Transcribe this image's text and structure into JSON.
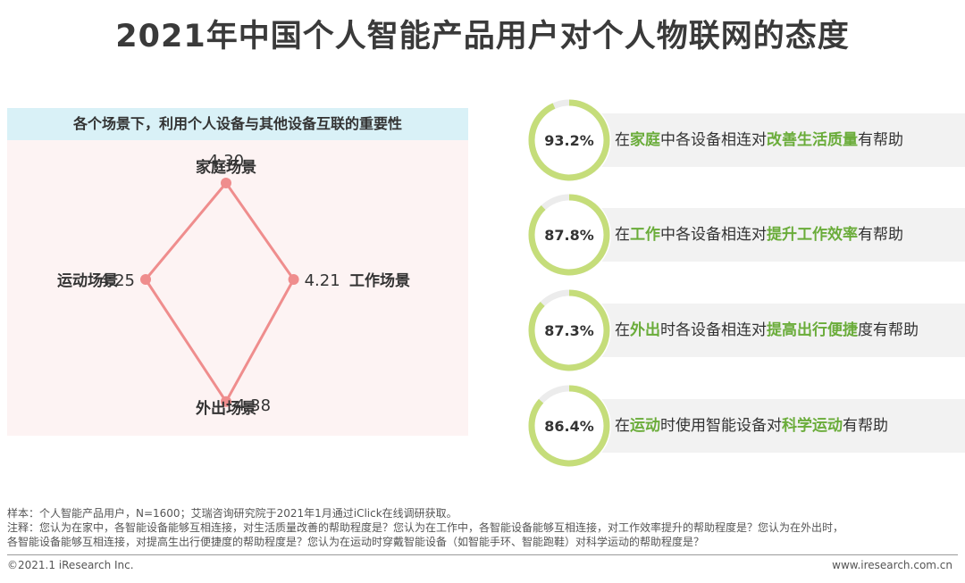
{
  "title": "2021年中国个人智能产品用户对个人物联网的态度",
  "left_panel": {
    "header": "各个场景下，利用个人设备与其他设备互联的重要性"
  },
  "chart_data": {
    "type": "radar",
    "title": "各个场景下，利用个人设备与其他设备互联的重要性",
    "axes": [
      "家庭场景",
      "工作场景",
      "外出场景",
      "运动场景"
    ],
    "values": [
      4.3,
      4.21,
      4.38,
      4.25
    ],
    "value_labels": [
      "4.30",
      "4.21",
      "4.38",
      "4.25"
    ],
    "color": "#ef8d8d"
  },
  "stats": [
    {
      "percent_label": "93.2%",
      "fraction": 0.932,
      "pre": "在",
      "hl1": "家庭",
      "mid": "中各设备相连对",
      "hl2": "改善生活质量",
      "post": "有帮助"
    },
    {
      "percent_label": "87.8%",
      "fraction": 0.878,
      "pre": "在",
      "hl1": "工作",
      "mid": "中各设备相连对",
      "hl2": "提升工作效率",
      "post": "有帮助"
    },
    {
      "percent_label": "87.3%",
      "fraction": 0.873,
      "pre": "在",
      "hl1": "外出",
      "mid": "时各设备相连对",
      "hl2": "提高出行便捷",
      "post": "度有帮助"
    },
    {
      "percent_label": "86.4%",
      "fraction": 0.864,
      "pre": "在",
      "hl1": "运动",
      "mid": "时使用智能设备对",
      "hl2": "科学运动",
      "post": "有帮助"
    }
  ],
  "colors": {
    "ring_fill": "#c5dd7a",
    "ring_track": "#ececec",
    "highlight": "#6aac3a",
    "radar_line": "#ef8d8d"
  },
  "footnotes": {
    "sample": "样本：个人智能产品用户，N=1600；艾瑞咨询研究院于2021年1月通过iClick在线调研获取。",
    "note1": "注释：您认为在家中，各智能设备能够互相连接，对生活质量改善的帮助程度是？您认为在工作中，各智能设备能够互相连接，对工作效率提升的帮助程度是？您认为在外出时，",
    "note2": "各智能设备能够互相连接，对提高生出行便捷度的帮助程度是？您认为在运动时穿戴智能设备（如智能手环、智能跑鞋）对科学运动的帮助程度是？"
  },
  "footer": {
    "copyright": "©2021.1 iResearch Inc.",
    "website": "www.iresearch.com.cn"
  }
}
